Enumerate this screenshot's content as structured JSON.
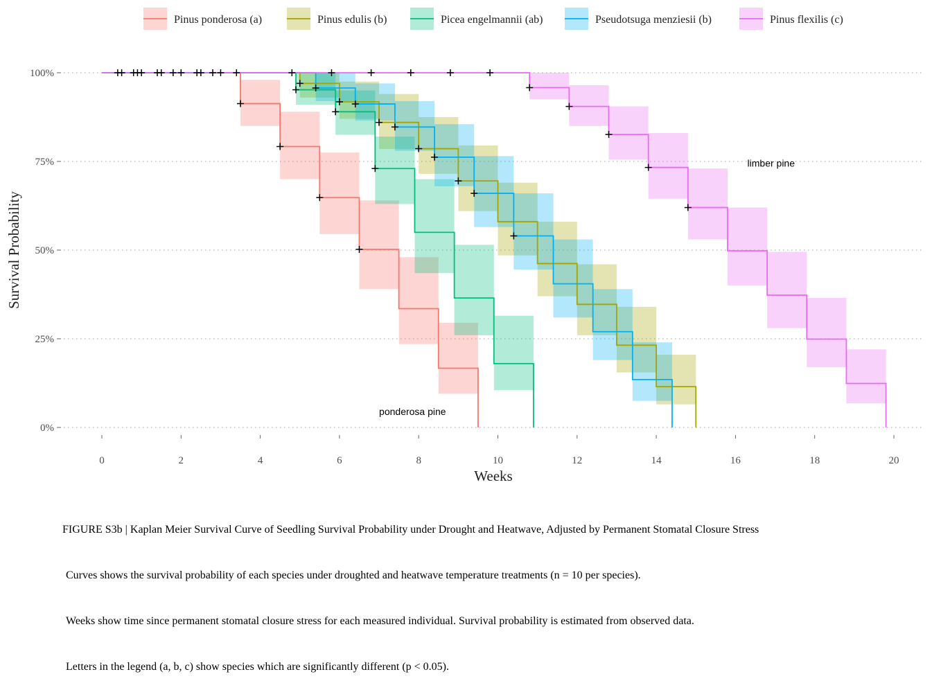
{
  "chart_data": {
    "type": "step",
    "xlabel": "Weeks",
    "ylabel": "Survival Probability",
    "xlim": [
      0,
      20.5
    ],
    "ylim": [
      0,
      1
    ],
    "x_ticks": [
      0,
      2,
      4,
      6,
      8,
      10,
      12,
      14,
      16,
      18,
      20
    ],
    "y_ticks": [
      {
        "value": 0,
        "label": "0%"
      },
      {
        "value": 0.25,
        "label": "25%"
      },
      {
        "value": 0.5,
        "label": "50%"
      },
      {
        "value": 0.75,
        "label": "75%"
      },
      {
        "value": 1,
        "label": "100%"
      }
    ],
    "grid": "horizontal dotted",
    "legend_position": "top",
    "series": [
      {
        "name": "Pinus ponderosa (a)",
        "color": "#F8766D",
        "steps": [
          {
            "x": 0,
            "s": 1.0,
            "lo": 1.0,
            "hi": 1.0
          },
          {
            "x": 3.5,
            "s": 0.913,
            "lo": 0.85,
            "hi": 0.98
          },
          {
            "x": 4.5,
            "s": 0.792,
            "lo": 0.7,
            "hi": 0.89
          },
          {
            "x": 5.5,
            "s": 0.648,
            "lo": 0.545,
            "hi": 0.775
          },
          {
            "x": 6.5,
            "s": 0.502,
            "lo": 0.39,
            "hi": 0.64
          },
          {
            "x": 7.5,
            "s": 0.335,
            "lo": 0.235,
            "hi": 0.48
          },
          {
            "x": 8.5,
            "s": 0.167,
            "lo": 0.095,
            "hi": 0.295
          },
          {
            "x": 9.5,
            "s": 0.0,
            "lo": 0.0,
            "hi": 0.0
          }
        ],
        "censored": [
          {
            "x": 0.4,
            "s": 1.0
          },
          {
            "x": 0.5,
            "s": 1.0
          },
          {
            "x": 0.8,
            "s": 1.0
          },
          {
            "x": 0.9,
            "s": 1.0
          },
          {
            "x": 1.0,
            "s": 1.0
          },
          {
            "x": 1.4,
            "s": 1.0
          },
          {
            "x": 1.5,
            "s": 1.0
          },
          {
            "x": 1.8,
            "s": 1.0
          },
          {
            "x": 2.0,
            "s": 1.0
          },
          {
            "x": 2.4,
            "s": 1.0
          },
          {
            "x": 2.5,
            "s": 1.0
          },
          {
            "x": 2.8,
            "s": 1.0
          },
          {
            "x": 3.0,
            "s": 1.0
          },
          {
            "x": 3.4,
            "s": 1.0
          },
          {
            "x": 3.5,
            "s": 0.913
          },
          {
            "x": 4.5,
            "s": 0.792
          },
          {
            "x": 5.5,
            "s": 0.648
          },
          {
            "x": 6.5,
            "s": 0.502
          }
        ]
      },
      {
        "name": "Pinus edulis (b)",
        "color": "#A3A500",
        "steps": [
          {
            "x": 0,
            "s": 1.0,
            "lo": 1.0,
            "hi": 1.0
          },
          {
            "x": 5.0,
            "s": 0.97,
            "lo": 0.93,
            "hi": 1.0
          },
          {
            "x": 6.0,
            "s": 0.918,
            "lo": 0.87,
            "hi": 0.975
          },
          {
            "x": 7.0,
            "s": 0.86,
            "lo": 0.785,
            "hi": 0.94
          },
          {
            "x": 8.0,
            "s": 0.786,
            "lo": 0.715,
            "hi": 0.875
          },
          {
            "x": 9.0,
            "s": 0.695,
            "lo": 0.61,
            "hi": 0.795
          },
          {
            "x": 10.0,
            "s": 0.58,
            "lo": 0.485,
            "hi": 0.69
          },
          {
            "x": 11.0,
            "s": 0.462,
            "lo": 0.37,
            "hi": 0.58
          },
          {
            "x": 12.0,
            "s": 0.347,
            "lo": 0.26,
            "hi": 0.46
          },
          {
            "x": 13.0,
            "s": 0.232,
            "lo": 0.155,
            "hi": 0.34
          },
          {
            "x": 14.0,
            "s": 0.115,
            "lo": 0.065,
            "hi": 0.205
          },
          {
            "x": 15.0,
            "s": 0.0,
            "lo": 0.0,
            "hi": 0.0
          }
        ],
        "censored": [
          {
            "x": 4.8,
            "s": 1.0
          },
          {
            "x": 5.0,
            "s": 0.97
          },
          {
            "x": 6.0,
            "s": 0.918
          },
          {
            "x": 7.0,
            "s": 0.86
          },
          {
            "x": 8.0,
            "s": 0.786
          },
          {
            "x": 9.0,
            "s": 0.695
          }
        ]
      },
      {
        "name": "Picea engelmannii (ab)",
        "color": "#00BF7D",
        "steps": [
          {
            "x": 0,
            "s": 1.0,
            "lo": 1.0,
            "hi": 1.0
          },
          {
            "x": 4.9,
            "s": 0.952,
            "lo": 0.91,
            "hi": 1.0
          },
          {
            "x": 5.9,
            "s": 0.89,
            "lo": 0.825,
            "hi": 0.95
          },
          {
            "x": 6.9,
            "s": 0.73,
            "lo": 0.63,
            "hi": 0.82
          },
          {
            "x": 7.9,
            "s": 0.55,
            "lo": 0.435,
            "hi": 0.7
          },
          {
            "x": 8.9,
            "s": 0.365,
            "lo": 0.26,
            "hi": 0.515
          },
          {
            "x": 9.9,
            "s": 0.18,
            "lo": 0.105,
            "hi": 0.315
          },
          {
            "x": 10.9,
            "s": 0.0,
            "lo": 0.0,
            "hi": 0.0
          }
        ],
        "censored": [
          {
            "x": 4.9,
            "s": 0.952
          },
          {
            "x": 5.9,
            "s": 0.89
          },
          {
            "x": 6.9,
            "s": 0.73
          }
        ]
      },
      {
        "name": "Pseudotsuga menziesii (b)",
        "color": "#00B0F6",
        "steps": [
          {
            "x": 0,
            "s": 1.0,
            "lo": 1.0,
            "hi": 1.0
          },
          {
            "x": 5.4,
            "s": 0.957,
            "lo": 0.92,
            "hi": 1.0
          },
          {
            "x": 6.4,
            "s": 0.912,
            "lo": 0.865,
            "hi": 0.97
          },
          {
            "x": 7.4,
            "s": 0.847,
            "lo": 0.78,
            "hi": 0.92
          },
          {
            "x": 8.4,
            "s": 0.762,
            "lo": 0.68,
            "hi": 0.855
          },
          {
            "x": 9.4,
            "s": 0.66,
            "lo": 0.565,
            "hi": 0.765
          },
          {
            "x": 10.4,
            "s": 0.54,
            "lo": 0.445,
            "hi": 0.66
          },
          {
            "x": 11.4,
            "s": 0.405,
            "lo": 0.31,
            "hi": 0.53
          },
          {
            "x": 12.4,
            "s": 0.27,
            "lo": 0.19,
            "hi": 0.39
          },
          {
            "x": 13.4,
            "s": 0.135,
            "lo": 0.075,
            "hi": 0.24
          },
          {
            "x": 14.4,
            "s": 0.0,
            "lo": 0.0,
            "hi": 0.0
          }
        ],
        "censored": [
          {
            "x": 5.4,
            "s": 0.957
          },
          {
            "x": 6.4,
            "s": 0.912
          },
          {
            "x": 7.4,
            "s": 0.847
          },
          {
            "x": 8.4,
            "s": 0.762
          },
          {
            "x": 9.4,
            "s": 0.66
          },
          {
            "x": 10.4,
            "s": 0.54
          }
        ]
      },
      {
        "name": "Pinus flexilis (c)",
        "color": "#E76BF3",
        "steps": [
          {
            "x": 0,
            "s": 1.0,
            "lo": 1.0,
            "hi": 1.0
          },
          {
            "x": 10.8,
            "s": 0.958,
            "lo": 0.925,
            "hi": 1.0
          },
          {
            "x": 11.8,
            "s": 0.905,
            "lo": 0.85,
            "hi": 0.965
          },
          {
            "x": 12.8,
            "s": 0.826,
            "lo": 0.755,
            "hi": 0.905
          },
          {
            "x": 13.8,
            "s": 0.733,
            "lo": 0.645,
            "hi": 0.83
          },
          {
            "x": 14.8,
            "s": 0.62,
            "lo": 0.53,
            "hi": 0.73
          },
          {
            "x": 15.8,
            "s": 0.498,
            "lo": 0.4,
            "hi": 0.62
          },
          {
            "x": 16.8,
            "s": 0.373,
            "lo": 0.28,
            "hi": 0.495
          },
          {
            "x": 17.8,
            "s": 0.249,
            "lo": 0.17,
            "hi": 0.365
          },
          {
            "x": 18.8,
            "s": 0.124,
            "lo": 0.068,
            "hi": 0.22
          },
          {
            "x": 19.8,
            "s": 0.0,
            "lo": 0.0,
            "hi": 0.0
          }
        ],
        "censored": [
          {
            "x": 5.8,
            "s": 1.0
          },
          {
            "x": 6.8,
            "s": 1.0
          },
          {
            "x": 7.8,
            "s": 1.0
          },
          {
            "x": 8.8,
            "s": 1.0
          },
          {
            "x": 9.8,
            "s": 1.0
          },
          {
            "x": 10.8,
            "s": 0.958
          },
          {
            "x": 11.8,
            "s": 0.905
          },
          {
            "x": 12.8,
            "s": 0.826
          },
          {
            "x": 13.8,
            "s": 0.733
          },
          {
            "x": 14.8,
            "s": 0.62
          }
        ]
      }
    ],
    "annotations": [
      {
        "text": "ponderosa pine",
        "x": 7.0,
        "y": 0.045
      },
      {
        "text": "limber pine",
        "x": 16.3,
        "y": 0.745
      }
    ]
  },
  "caption": {
    "line1": "FIGURE S3b | Kaplan Meier Survival Curve of Seedling Survival Probability under Drought and Heatwave, Adjusted by Permanent Stomatal Closure Stress",
    "line2": "Curves shows the survival probability of each species under droughted and heatwave temperature treatments (n = 10 per species).",
    "line3": "Weeks show time since permanent stomatal closure stress for each measured individual. Survival probability is estimated from observed data.",
    "line4": "Letters in the legend (a, b, c) show species which are significantly different (p < 0.05)."
  }
}
